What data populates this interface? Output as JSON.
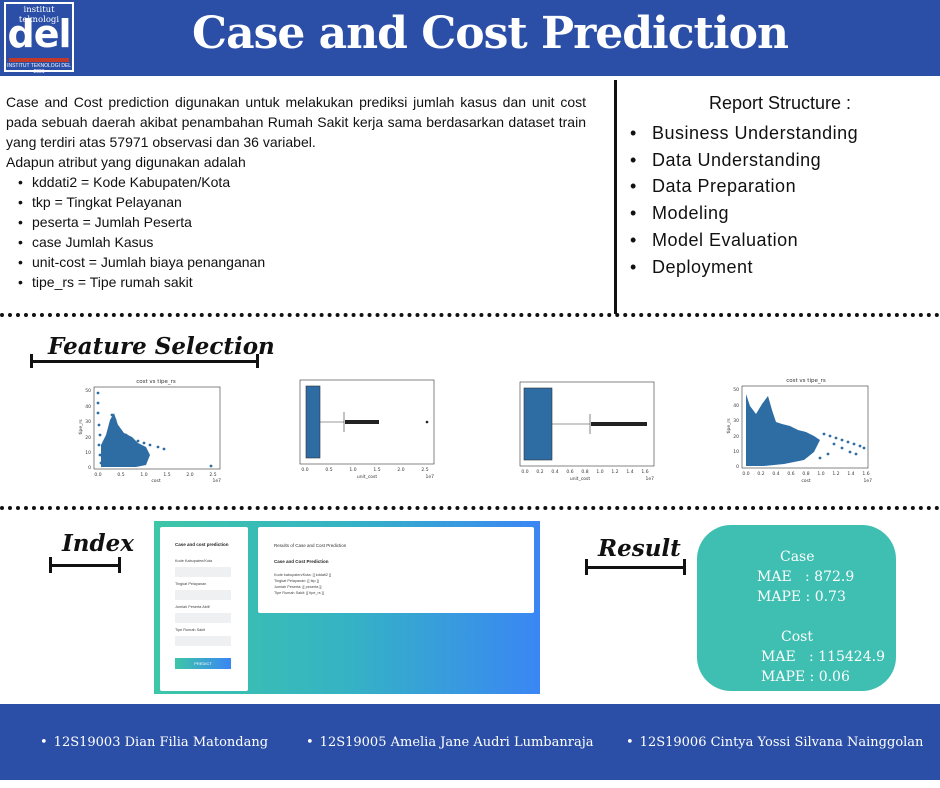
{
  "header": {
    "title": "Case and Cost Prediction",
    "logo": {
      "top_text": "institut teknologi",
      "main_text": "del",
      "subtitle": "INSTITUT TEKNOLOGI DEL",
      "year": "2001"
    }
  },
  "intro": {
    "paragraph": "Case and Cost prediction digunakan untuk melakukan prediksi jumlah kasus dan unit cost pada sebuah daerah akibat penambahan Rumah Sakit kerja sama berdasarkan dataset train yang terdiri atas 57971 observasi dan 36 variabel.",
    "attributes_intro": "Adapun atribut yang digunakan adalah",
    "attributes": [
      "kddati2 = Kode Kabupaten/Kota",
      "tkp = Tingkat Pelayanan",
      "peserta = Jumlah Peserta",
      "case Jumlah Kasus",
      "unit-cost = Jumlah biaya penanganan",
      "tipe_rs = Tipe rumah sakit"
    ]
  },
  "report": {
    "title": "Report Structure :",
    "items": [
      "Business Understanding",
      "Data Understanding",
      "Data Preparation",
      "Modeling",
      "Model Evaluation",
      "Deployment"
    ]
  },
  "feature_selection": {
    "title": "Feature Selection",
    "plots": [
      {
        "title": "cost vs tipe_rs",
        "xlabel": "cost",
        "ylabel": "tipe_rs",
        "xticks": [
          "0.0",
          "0.5",
          "1.0",
          "1.5",
          "2.0",
          "2.5"
        ],
        "yticks": [
          "0",
          "10",
          "20",
          "30",
          "40",
          "50"
        ],
        "offset": "1e7"
      },
      {
        "xlabel": "unit_cost",
        "xticks": [
          "0.0",
          "0.5",
          "1.0",
          "1.5",
          "2.0",
          "2.5"
        ],
        "offset": "1e7"
      },
      {
        "xlabel": "unit_cost",
        "xticks": [
          "0.0",
          "0.2",
          "0.4",
          "0.6",
          "0.8",
          "1.0",
          "1.2",
          "1.4",
          "1.6"
        ],
        "offset": "1e7"
      },
      {
        "title": "cost vs tipe_rs",
        "xlabel": "cost",
        "ylabel": "tipe_rs",
        "xticks": [
          "0.0",
          "0.2",
          "0.4",
          "0.6",
          "0.8",
          "1.0",
          "1.2",
          "1.4",
          "1.6"
        ],
        "yticks": [
          "0",
          "10",
          "20",
          "30",
          "40",
          "50"
        ],
        "offset": "1e7"
      }
    ]
  },
  "index": {
    "title": "Index",
    "form": {
      "heading": "Case and cost prediction",
      "fields": [
        "Kode Kabupaten/Kota",
        "Tingkat Pelayanan",
        "Jumlah Peserta Aktif",
        "Tipe Rumah Sakit"
      ],
      "button": "PREDICT"
    },
    "results": {
      "title": "Results of Case and Cost Prediction",
      "heading": "Case and Cost Prediction",
      "lines": [
        "Kode kabupaten/Kota: [[ kddati2 ]]",
        "Tingkat Pelayanan: [[ tkp ]]",
        "Jumlah Peserta: [[ peserta ]]",
        "Tipe Rumah Sakit: [[ tipe_rs ]]"
      ]
    }
  },
  "result": {
    "title": "Result",
    "case_label": "Case",
    "case_mae": "MAE   : 872.9",
    "case_mape": "MAPE : 0.73",
    "cost_label": "Cost",
    "cost_mae": "MAE   : 115424.9",
    "cost_mape": "MAPE : 0.06"
  },
  "footer": {
    "authors": [
      "12S19003 Dian Filia Matondang",
      "12S19005 Amelia Jane Audri Lumbanraja",
      "12S19006 Cintya Yossi Silvana Nainggolan"
    ]
  },
  "colors": {
    "header_blue": "#2b4ea6",
    "teal": "#3ebfb1",
    "plot_blue": "#2e6da4"
  }
}
